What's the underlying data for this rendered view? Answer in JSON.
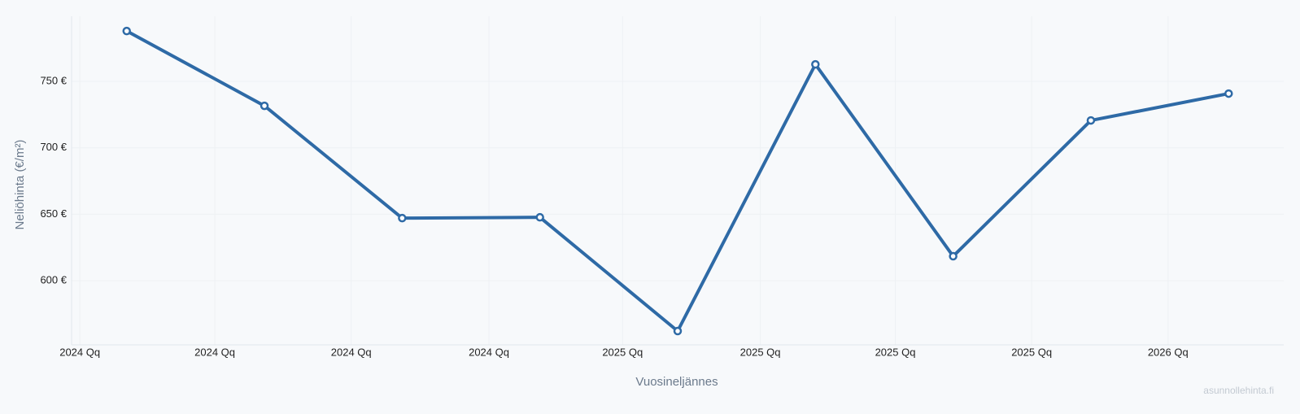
{
  "chart_data": {
    "type": "line",
    "x_label": "Vuosineljännes",
    "y_label": "Neliöhinta (€/m²)",
    "watermark": "asunnollehinta.fi",
    "categories": [
      null,
      null,
      null,
      null,
      null,
      null,
      null,
      null,
      null
    ],
    "series": [
      {
        "name": "Neliöhinta",
        "color": "#2e6aa6",
        "values": [
          787.9,
          731.6,
          647.1,
          647.7,
          562.1,
          762.8,
          618.4,
          720.6,
          740.8
        ]
      }
    ],
    "xlim": [
      -0.4,
      8.4
    ],
    "xticks": [
      {
        "value": -0.34,
        "label": "2024 Qq"
      },
      {
        "value": 0.64,
        "label": "2024 Qq"
      },
      {
        "value": 1.63,
        "label": "2024 Qq"
      },
      {
        "value": 2.63,
        "label": "2024 Qq"
      },
      {
        "value": 3.6,
        "label": "2025 Qq"
      },
      {
        "value": 4.6,
        "label": "2025 Qq"
      },
      {
        "value": 5.58,
        "label": "2025 Qq"
      },
      {
        "value": 6.57,
        "label": "2025 Qq"
      },
      {
        "value": 7.56,
        "label": "2026 Qq"
      }
    ],
    "ylim": [
      551.7,
      799
    ],
    "yticks": [
      {
        "value": 600,
        "label": "600 €"
      },
      {
        "value": 650,
        "label": "650 €"
      },
      {
        "value": 700,
        "label": "700 €"
      },
      {
        "value": 750,
        "label": "750 €"
      }
    ],
    "grid": true
  }
}
